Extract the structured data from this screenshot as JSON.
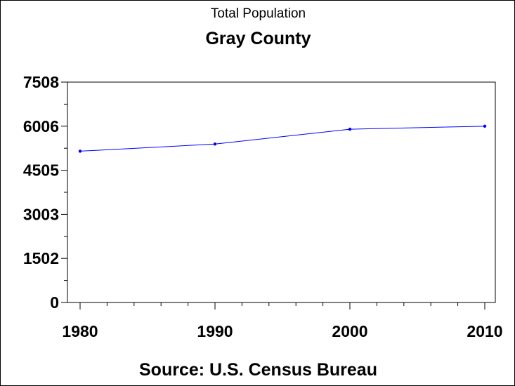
{
  "colors": {
    "line": "#0000ff",
    "axis": "#000000",
    "background": "#ffffff"
  },
  "chart_data": {
    "type": "line",
    "title": "Gray County",
    "subtitle": "Total Population",
    "source": "Source: U.S. Census Bureau",
    "x": [
      1980,
      1990,
      2000,
      2010
    ],
    "series": [
      {
        "values": [
          5155,
          5398,
          5904,
          6006
        ]
      }
    ],
    "xlim": [
      1980,
      2010
    ],
    "ylim": [
      0,
      7508
    ],
    "yticks": [
      0,
      1502,
      3003,
      4505,
      6006,
      7508
    ],
    "xticks": [
      1980,
      1990,
      2000,
      2010
    ],
    "grid": false
  }
}
